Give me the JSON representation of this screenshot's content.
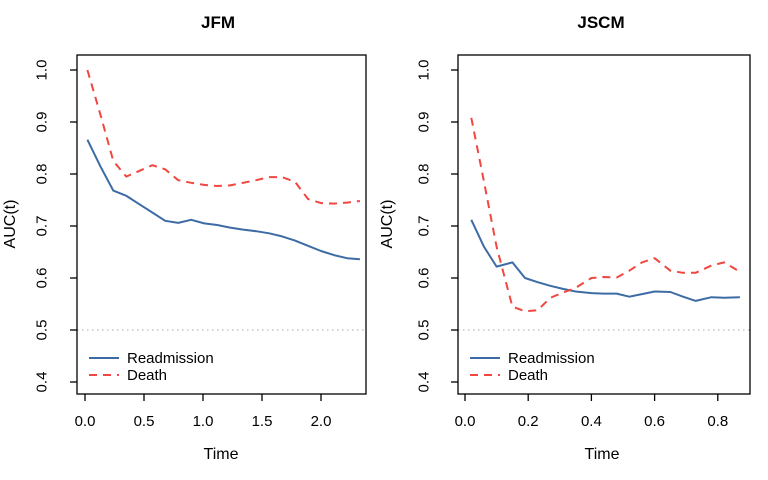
{
  "page": {
    "background": "#ffffff"
  },
  "chart_data": [
    {
      "id": "jfm",
      "type": "line",
      "title": "JFM",
      "xlabel": "Time",
      "ylabel": "AUC(t)",
      "xlim": [
        0.0,
        2.35
      ],
      "ylim": [
        0.4,
        1.0
      ],
      "xticks": [
        0.0,
        0.5,
        1.0,
        1.5,
        2.0
      ],
      "xtick_labels": [
        "0.0",
        "0.5",
        "1.0",
        "1.5",
        "2.0"
      ],
      "yticks": [
        0.4,
        0.5,
        0.6,
        0.7,
        0.8,
        0.9,
        1.0
      ],
      "ytick_labels": [
        "0.4",
        "0.5",
        "0.6",
        "0.7",
        "0.8",
        "0.9",
        "1.0"
      ],
      "grid": false,
      "reference_line": {
        "y": 0.5,
        "style": "dotted",
        "color": "#a8a8a8"
      },
      "legend": {
        "position": "bottom-left",
        "border": false
      },
      "x": [
        0.02,
        0.13,
        0.24,
        0.35,
        0.46,
        0.57,
        0.68,
        0.79,
        0.9,
        1.01,
        1.12,
        1.23,
        1.34,
        1.45,
        1.56,
        1.67,
        1.78,
        1.89,
        2.0,
        2.11,
        2.22,
        2.33
      ],
      "series": [
        {
          "name": "Readmission",
          "color": "#3d6ca5",
          "dash": "solid",
          "values": [
            0.866,
            0.815,
            0.768,
            0.758,
            0.742,
            0.726,
            0.71,
            0.706,
            0.712,
            0.705,
            0.702,
            0.697,
            0.693,
            0.69,
            0.686,
            0.68,
            0.672,
            0.662,
            0.652,
            0.644,
            0.638,
            0.636
          ]
        },
        {
          "name": "Death",
          "color": "#f24740",
          "dash": "dashed",
          "values": [
            1.0,
            0.915,
            0.825,
            0.795,
            0.806,
            0.817,
            0.809,
            0.788,
            0.783,
            0.779,
            0.777,
            0.778,
            0.783,
            0.788,
            0.794,
            0.794,
            0.785,
            0.752,
            0.744,
            0.743,
            0.745,
            0.748
          ]
        }
      ]
    },
    {
      "id": "jscm",
      "type": "line",
      "title": "JSCM",
      "xlabel": "Time",
      "ylabel": "AUC(t)",
      "xlim": [
        0.0,
        0.9
      ],
      "ylim": [
        0.4,
        1.0
      ],
      "xticks": [
        0.0,
        0.2,
        0.4,
        0.6,
        0.8
      ],
      "xtick_labels": [
        "0.0",
        "0.2",
        "0.4",
        "0.6",
        "0.8"
      ],
      "yticks": [
        0.4,
        0.5,
        0.6,
        0.7,
        0.8,
        0.9,
        1.0
      ],
      "ytick_labels": [
        "0.4",
        "0.5",
        "0.6",
        "0.7",
        "0.8",
        "0.9",
        "1.0"
      ],
      "grid": false,
      "reference_line": {
        "y": 0.5,
        "style": "dotted",
        "color": "#a8a8a8"
      },
      "legend": {
        "position": "bottom-left",
        "border": false
      },
      "x": [
        0.02,
        0.06,
        0.1,
        0.15,
        0.19,
        0.23,
        0.27,
        0.31,
        0.35,
        0.4,
        0.44,
        0.48,
        0.52,
        0.56,
        0.6,
        0.65,
        0.69,
        0.73,
        0.78,
        0.82,
        0.87
      ],
      "series": [
        {
          "name": "Readmission",
          "color": "#3d6ca5",
          "dash": "solid",
          "values": [
            0.712,
            0.66,
            0.622,
            0.63,
            0.6,
            0.592,
            0.585,
            0.579,
            0.574,
            0.571,
            0.57,
            0.57,
            0.564,
            0.569,
            0.574,
            0.573,
            0.564,
            0.556,
            0.563,
            0.562,
            0.563
          ]
        },
        {
          "name": "Death",
          "color": "#f24740",
          "dash": "dashed",
          "values": [
            0.908,
            0.785,
            0.66,
            0.545,
            0.536,
            0.538,
            0.562,
            0.572,
            0.581,
            0.6,
            0.602,
            0.601,
            0.614,
            0.63,
            0.638,
            0.614,
            0.61,
            0.61,
            0.624,
            0.63,
            0.612
          ]
        }
      ]
    }
  ]
}
